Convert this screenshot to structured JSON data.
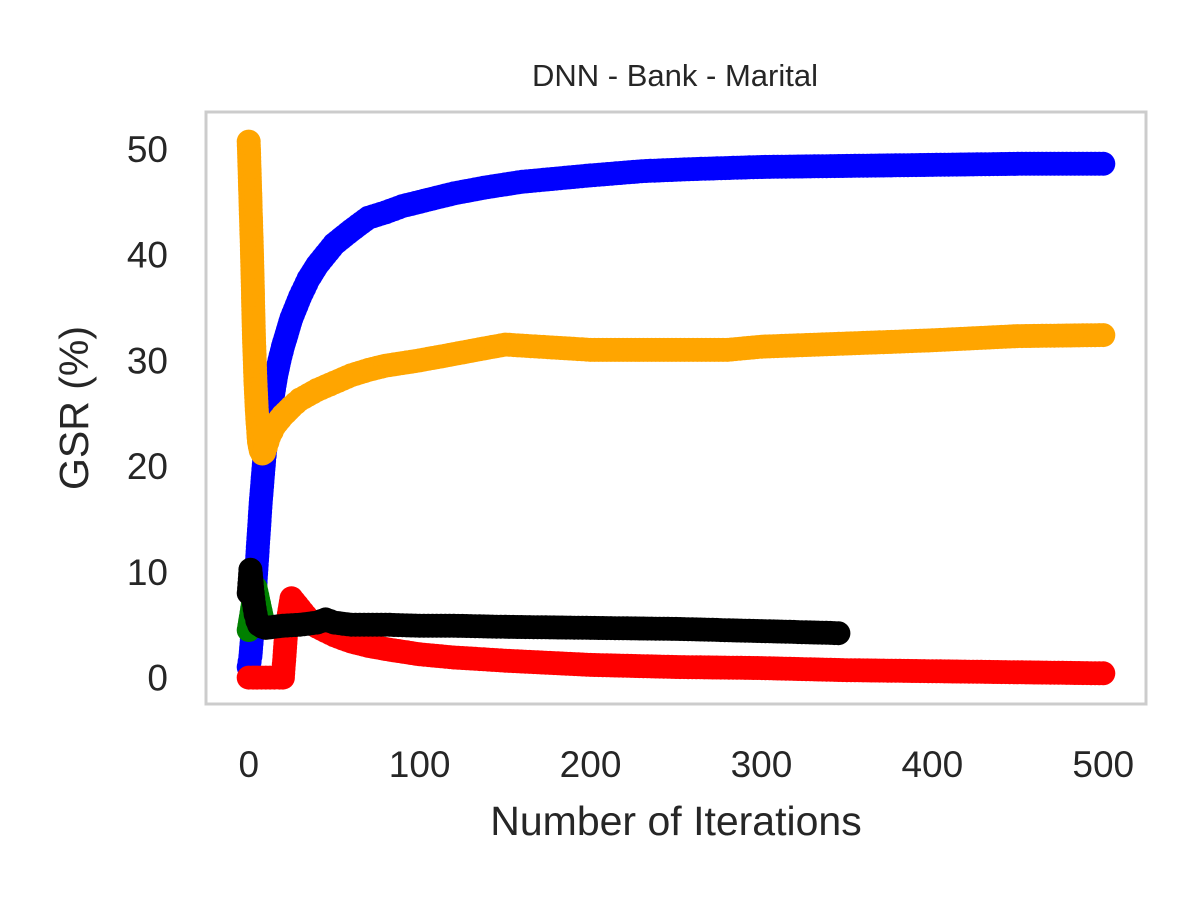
{
  "chart_data": {
    "type": "line",
    "title": "DNN - Bank - Marital",
    "xlabel": "Number of Iterations",
    "ylabel": "GSR (%)",
    "xlim": [
      -25,
      525
    ],
    "ylim": [
      -2.5,
      53.5
    ],
    "xticks": [
      0,
      100,
      200,
      300,
      400,
      500
    ],
    "yticks": [
      0,
      10,
      20,
      30,
      40,
      50
    ],
    "grid": false,
    "legend": "none",
    "markers": "filled circles",
    "series": [
      {
        "color": "#0000ff",
        "x": [
          0,
          1,
          2,
          3,
          4,
          5,
          6,
          7,
          8,
          9,
          10,
          12,
          14,
          16,
          18,
          20,
          25,
          30,
          35,
          40,
          50,
          60,
          70,
          80,
          90,
          100,
          120,
          140,
          160,
          180,
          200,
          230,
          260,
          300,
          350,
          400,
          450,
          500
        ],
        "y": [
          1.0,
          2.0,
          4.0,
          6.5,
          9.0,
          11.5,
          14.0,
          16.5,
          18.5,
          20.5,
          22.0,
          24.5,
          26.5,
          28.5,
          30.0,
          31.3,
          34.0,
          36.0,
          37.7,
          39.0,
          41.0,
          42.3,
          43.5,
          44.0,
          44.6,
          45.0,
          45.8,
          46.4,
          46.9,
          47.2,
          47.5,
          47.9,
          48.1,
          48.3,
          48.4,
          48.5,
          48.6,
          48.6
        ]
      },
      {
        "color": "#ffa500",
        "x": [
          0,
          2,
          3,
          4,
          5,
          6,
          7,
          8,
          9,
          10,
          12,
          15,
          20,
          25,
          30,
          40,
          50,
          60,
          70,
          80,
          100,
          120,
          140,
          150,
          160,
          180,
          200,
          250,
          280,
          300,
          350,
          400,
          450,
          500
        ],
        "y": [
          50.7,
          39.7,
          32.5,
          27.7,
          24.5,
          22.3,
          21.5,
          21.2,
          21.3,
          21.8,
          22.8,
          23.8,
          24.8,
          25.6,
          26.3,
          27.2,
          27.9,
          28.6,
          29.1,
          29.5,
          30.0,
          30.6,
          31.2,
          31.5,
          31.4,
          31.2,
          31.0,
          31.0,
          31.0,
          31.3,
          31.6,
          31.9,
          32.3,
          32.4
        ]
      },
      {
        "color": "#ff0000",
        "x": [
          0,
          5,
          10,
          15,
          18,
          20,
          22,
          25,
          30,
          35,
          40,
          50,
          60,
          70,
          80,
          100,
          120,
          150,
          200,
          250,
          300,
          350,
          400,
          450,
          500
        ],
        "y": [
          0.0,
          0.0,
          0.0,
          0.0,
          0.0,
          0.0,
          4.5,
          7.5,
          6.5,
          5.5,
          4.8,
          4.0,
          3.4,
          3.0,
          2.7,
          2.2,
          1.9,
          1.6,
          1.2,
          1.0,
          0.9,
          0.7,
          0.6,
          0.5,
          0.4
        ]
      },
      {
        "color": "#008000",
        "x": [
          0,
          2,
          4,
          6,
          8,
          10
        ],
        "y": [
          4.5,
          6.5,
          8.5,
          7.0,
          5.5,
          5.0
        ]
      },
      {
        "color": "#000000",
        "x": [
          0,
          1,
          2,
          3,
          4,
          5,
          6,
          8,
          10,
          15,
          20,
          30,
          40,
          45,
          50,
          60,
          80,
          100,
          120,
          150,
          200,
          250,
          300,
          345
        ],
        "y": [
          8.0,
          10.2,
          8.5,
          7.0,
          6.0,
          5.4,
          5.0,
          4.8,
          4.7,
          4.8,
          4.9,
          5.0,
          5.2,
          5.5,
          5.2,
          5.0,
          5.0,
          4.9,
          4.9,
          4.8,
          4.7,
          4.6,
          4.4,
          4.2
        ]
      }
    ]
  }
}
